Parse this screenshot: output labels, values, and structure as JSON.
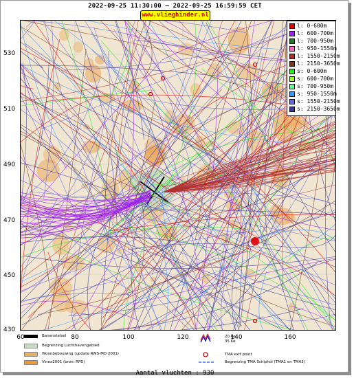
{
  "header": {
    "title": "2022-09-25 11:30:00 – 2022-09-25 16:59:59 CET",
    "site": "www.vlieghinder.nl"
  },
  "axes": {
    "y_ticks": [
      "530",
      "510",
      "490",
      "470",
      "450",
      "430"
    ],
    "x_ticks": [
      "80",
      "100",
      "120",
      "140",
      "160"
    ],
    "x_start_label": "60"
  },
  "legend": [
    {
      "label": "l: 0-600m",
      "color": "#e00000"
    },
    {
      "label": "l: 600-700m",
      "color": "#a020f0"
    },
    {
      "label": "l: 700-950m",
      "color": "#1f7a1f"
    },
    {
      "label": "l: 950-1550m",
      "color": "#ff66cc"
    },
    {
      "label": "l: 1550-2150m",
      "color": "#b03030"
    },
    {
      "label": "l: 2150-3650m",
      "color": "#7a3b1a"
    },
    {
      "label": "s: 0-600m",
      "color": "#22ee22"
    },
    {
      "label": "s: 600-700m",
      "color": "#99ff33"
    },
    {
      "label": "s: 700-950m",
      "color": "#66ff99"
    },
    {
      "label": "s: 950-1550m",
      "color": "#3399ff"
    },
    {
      "label": "s: 1550-2150m",
      "color": "#6666dd"
    },
    {
      "label": "s: 2150-3650m",
      "color": "#3a3a99"
    }
  ],
  "map_legend": {
    "runway": "Banenstelsel",
    "airport_boundary": "Begrenzing Luchthavengebied",
    "housing": "Woonbebouwing (update RWS-MD 2001)",
    "vinex": "Vinex2001 (bron: RPD)",
    "ke_upper": "20 Ke",
    "ke_lower": "35 Ke",
    "tma_exit": "TMA exit point",
    "tma_boundary": "Begrenzing TMA Schiphol  (TMA1 en TMA3)"
  },
  "colors": {
    "land": "#f0e6d2",
    "housing": "#e8b060",
    "vinex": "#e89a40",
    "airport": "#c8dcc0"
  },
  "footer": {
    "count": "Aantal vluchten : 930"
  }
}
